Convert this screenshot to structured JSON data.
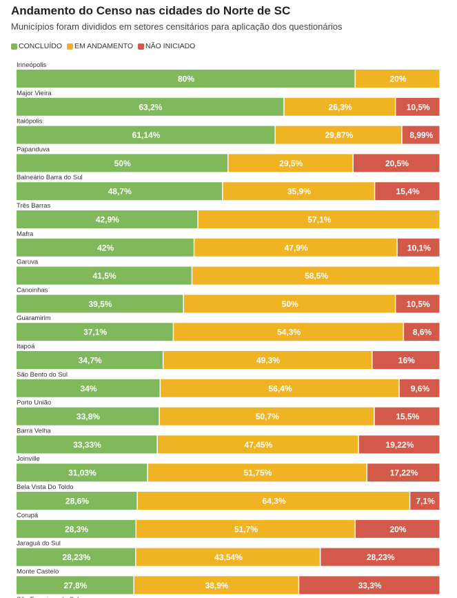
{
  "chart_data": {
    "type": "bar",
    "orientation": "horizontal",
    "stacked": true,
    "normalized_percent": true,
    "title": "Andamento do Censo nas cidades do Norte de SC",
    "subtitle": "Municípios foram divididos em setores censitários para aplicação dos questionários",
    "legend_position": "top-left",
    "grid": false,
    "categories": [
      "Irineópolis",
      "Major Vieira",
      "Itaiópolis",
      "Papanduva",
      "Balneário Barra do Sul",
      "Três Barras",
      "Mafra",
      "Garuva",
      "Canoinhas",
      "Guaramirim",
      "Itapoá",
      "São Bento do Sul",
      "Porto União",
      "Barra Velha",
      "Joinville",
      "Bela Vista Do Toldo",
      "Corupá",
      "Jaraguá do Sul",
      "Monte Castelo",
      "São Francisco do Sul"
    ],
    "series": [
      {
        "name": "CONCLUÍDO",
        "color": "#7fb95b",
        "values": [
          80,
          63.2,
          61.14,
          50,
          48.7,
          42.9,
          42,
          41.5,
          39.5,
          37.1,
          34.7,
          34,
          33.8,
          33.33,
          31.03,
          28.6,
          28.3,
          28.23,
          27.8,
          null
        ],
        "labels": [
          "80%",
          "63,2%",
          "61,14%",
          "50%",
          "48,7%",
          "42,9%",
          "42%",
          "41,5%",
          "39,5%",
          "37,1%",
          "34,7%",
          "34%",
          "33,8%",
          "33,33%",
          "31,03%",
          "28,6%",
          "28,3%",
          "28,23%",
          "27,8%",
          null
        ]
      },
      {
        "name": "EM ANDAMENTO",
        "color": "#f0b323",
        "values": [
          20,
          26.3,
          29.87,
          29.5,
          35.9,
          57.1,
          47.9,
          58.5,
          50,
          54.3,
          49.3,
          56.4,
          50.7,
          47.45,
          51.75,
          64.3,
          51.7,
          43.54,
          38.9,
          null
        ],
        "labels": [
          "20%",
          "26,3%",
          "29,87%",
          "29,5%",
          "35,9%",
          "57,1%",
          "47,9%",
          "58,5%",
          "50%",
          "54,3%",
          "49,3%",
          "56,4%",
          "50,7%",
          "47,45%",
          "51,75%",
          "64,3%",
          "51,7%",
          "43,54%",
          "38,9%",
          null
        ]
      },
      {
        "name": "NÃO INICIADO",
        "color": "#d3594b",
        "values": [
          0,
          10.5,
          8.99,
          20.5,
          15.4,
          0,
          10.1,
          0,
          10.5,
          8.6,
          16,
          9.6,
          15.5,
          19.22,
          17.22,
          7.1,
          20,
          28.23,
          33.3,
          null
        ],
        "labels": [
          null,
          "10,5%",
          "8,99%",
          "20,5%",
          "15,4%",
          null,
          "10,1%",
          null,
          "10,5%",
          "8,6%",
          "16%",
          "9,6%",
          "15,5%",
          "19,22%",
          "17,22%",
          "7,1%",
          "20%",
          "28,23%",
          "33,3%",
          null
        ]
      }
    ]
  }
}
